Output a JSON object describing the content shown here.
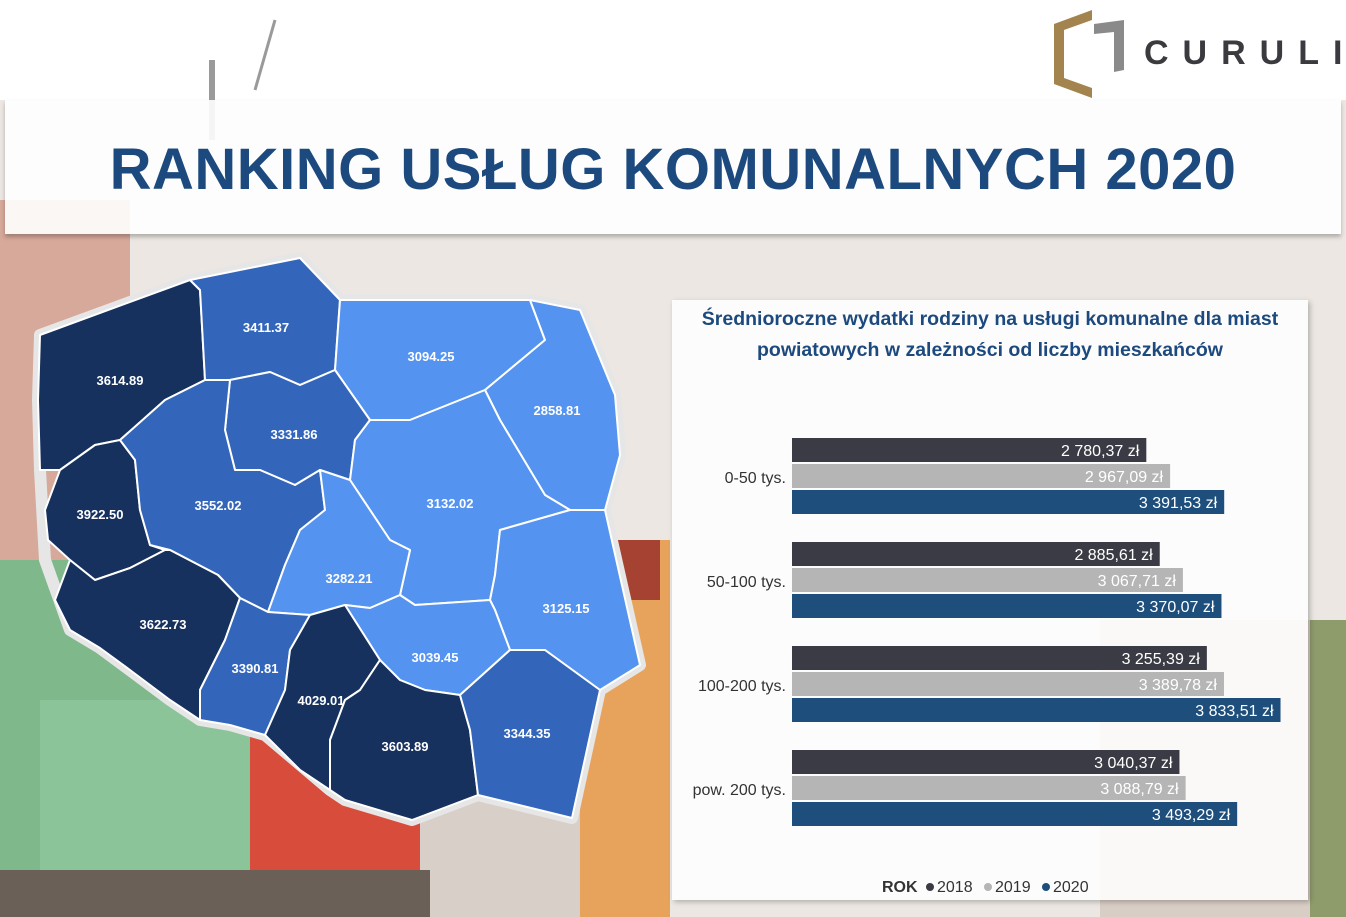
{
  "logo": {
    "name": "CURULIS"
  },
  "title": "RANKING USŁUG KOMUNALNYCH 2020",
  "map": {
    "regions": [
      {
        "name": "zachodniopomorskie",
        "value": "3614.89",
        "color": "#17315f"
      },
      {
        "name": "pomorskie",
        "value": "3411.37",
        "color": "#3366bb"
      },
      {
        "name": "warmińsko-mazurskie",
        "value": "3094.25",
        "color": "#5593f0"
      },
      {
        "name": "podlaskie",
        "value": "2858.81",
        "color": "#5593f0"
      },
      {
        "name": "kujawsko-pomorskie",
        "value": "3331.86",
        "color": "#3366bb"
      },
      {
        "name": "lubuskie",
        "value": "3922.50",
        "color": "#17315f"
      },
      {
        "name": "wielkopolskie",
        "value": "3552.02",
        "color": "#3366bb"
      },
      {
        "name": "mazowieckie",
        "value": "3132.02",
        "color": "#5593f0"
      },
      {
        "name": "łódzkie",
        "value": "3282.21",
        "color": "#5593f0"
      },
      {
        "name": "lubelskie",
        "value": "3125.15",
        "color": "#5593f0"
      },
      {
        "name": "dolnośląskie",
        "value": "3622.73",
        "color": "#17315f"
      },
      {
        "name": "opolskie",
        "value": "3390.81",
        "color": "#3366bb"
      },
      {
        "name": "świętokrzyskie",
        "value": "3039.45",
        "color": "#5593f0"
      },
      {
        "name": "śląskie",
        "value": "4029.01",
        "color": "#17315f"
      },
      {
        "name": "małopolskie",
        "value": "3603.89",
        "color": "#17315f"
      },
      {
        "name": "podkarpackie",
        "value": "3344.35",
        "color": "#3366bb"
      }
    ]
  },
  "chart_data": {
    "type": "bar",
    "orientation": "horizontal",
    "title": "Średnioroczne wydatki rodziny na usługi komunalne dla miast powiatowych w zależności od liczby mieszkańców",
    "categories": [
      "0-50 tys.",
      "50-100 tys.",
      "100-200 tys.",
      "pow. 200 tys."
    ],
    "series": [
      {
        "name": "2018",
        "color": "#3b3b45",
        "values": [
          2780.37,
          2885.61,
          3255.39,
          3040.37
        ],
        "labels": [
          "2 780,37 zł",
          "2 885,61 zł",
          "3 255,39 zł",
          "3 040,37 zł"
        ]
      },
      {
        "name": "2019",
        "color": "#b5b5b5",
        "values": [
          2967.09,
          3067.71,
          3389.78,
          3088.79
        ],
        "labels": [
          "2 967,09 zł",
          "3 067,71 zł",
          "3 389,78 zł",
          "3 088,79 zł"
        ]
      },
      {
        "name": "2020",
        "color": "#1e4e7c",
        "values": [
          3391.53,
          3370.07,
          3833.51,
          3493.29
        ],
        "labels": [
          "3 391,53 zł",
          "3 370,07 zł",
          "3 833,51 zł",
          "3 493,29 zł"
        ]
      }
    ],
    "legend": {
      "title": "ROK",
      "position": "bottom"
    },
    "xlim": [
      0,
      3900
    ],
    "grid": false
  }
}
